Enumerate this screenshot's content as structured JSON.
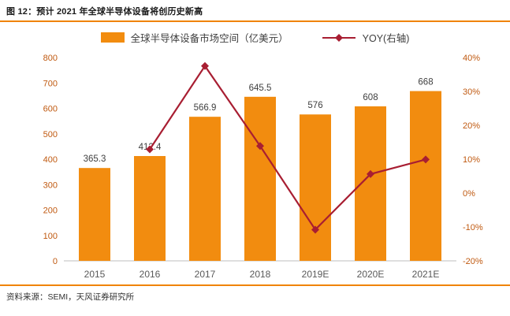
{
  "figure": {
    "title": "图 12：预计 2021 年全球半导体设备将创历史新高",
    "source": "资料来源：SEMI，天风证券研究所"
  },
  "legend": [
    {
      "label": "全球半导体设备市场空间（亿美元）",
      "type": "bar"
    },
    {
      "label": "YOY(右轴)",
      "type": "line"
    }
  ],
  "colors": {
    "bar": "#F28C0F",
    "line": "#A81E32",
    "axis_label": "#C05A11",
    "category_label": "#595959",
    "data_label": "#404040",
    "divider": "#F08300",
    "baseline": "#BFBFBF"
  },
  "chart_data": {
    "type": "bar+line",
    "title": "预计 2021 年全球半导体设备将创历史新高",
    "categories": [
      "2015",
      "2016",
      "2017",
      "2018",
      "2019E",
      "2020E",
      "2021E"
    ],
    "series": [
      {
        "name": "全球半导体设备市场空间（亿美元）",
        "type": "bar",
        "axis": "left",
        "values": [
          365.3,
          412.4,
          566.9,
          645.5,
          576,
          608,
          668
        ],
        "labels": [
          "365.3",
          "412.4",
          "566.9",
          "645.5",
          "576",
          "608",
          "668"
        ]
      },
      {
        "name": "YOY(右轴)",
        "type": "line",
        "axis": "right",
        "values": [
          null,
          12.9,
          37.5,
          13.9,
          -10.8,
          5.6,
          9.9
        ]
      }
    ],
    "left_axis": {
      "min": 0,
      "max": 800,
      "step": 100,
      "ticks": [
        "0",
        "100",
        "200",
        "300",
        "400",
        "500",
        "600",
        "700",
        "800"
      ]
    },
    "right_axis": {
      "min": -20,
      "max": 40,
      "step": 10,
      "ticks": [
        "-20%",
        "-10%",
        "0%",
        "10%",
        "20%",
        "30%",
        "40%"
      ]
    },
    "grid": false,
    "legend_position": "top"
  }
}
